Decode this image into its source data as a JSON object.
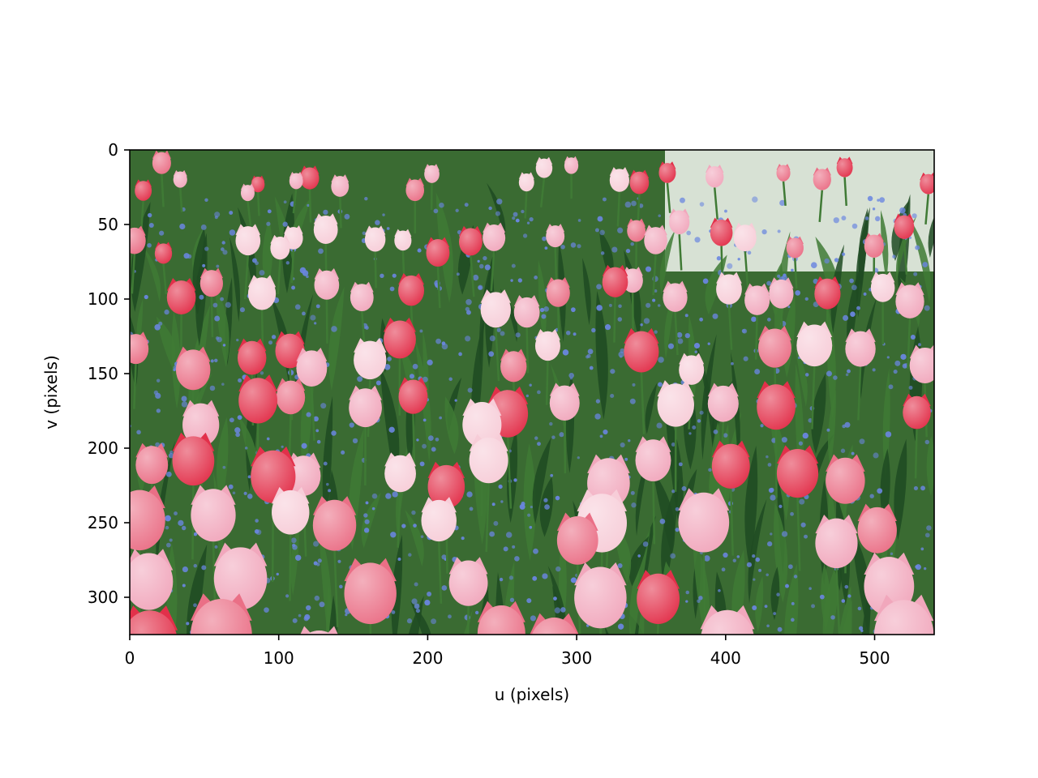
{
  "chart_data": {
    "type": "image",
    "title": "",
    "xlabel": "u (pixels)",
    "ylabel": "v (pixels)",
    "xlim": [
      0,
      540
    ],
    "ylim": [
      325,
      0
    ],
    "xticks": [
      0,
      100,
      200,
      300,
      400,
      500
    ],
    "yticks": [
      0,
      50,
      100,
      150,
      200,
      250,
      300
    ],
    "grid": false,
    "image_content": "field of pink and red tulips with green leaves and blue forget-me-nots"
  },
  "colors": {
    "leaf_dark": "#1f4a22",
    "leaf": "#3f7a35",
    "forget_me_not": "#6a86e0",
    "tulip_pink": "#f1a7bc",
    "tulip_light": "#f7cdd8",
    "tulip_red": "#e2304a",
    "tulip_rose": "#ea6f86",
    "background_top": "#e9eee6"
  }
}
